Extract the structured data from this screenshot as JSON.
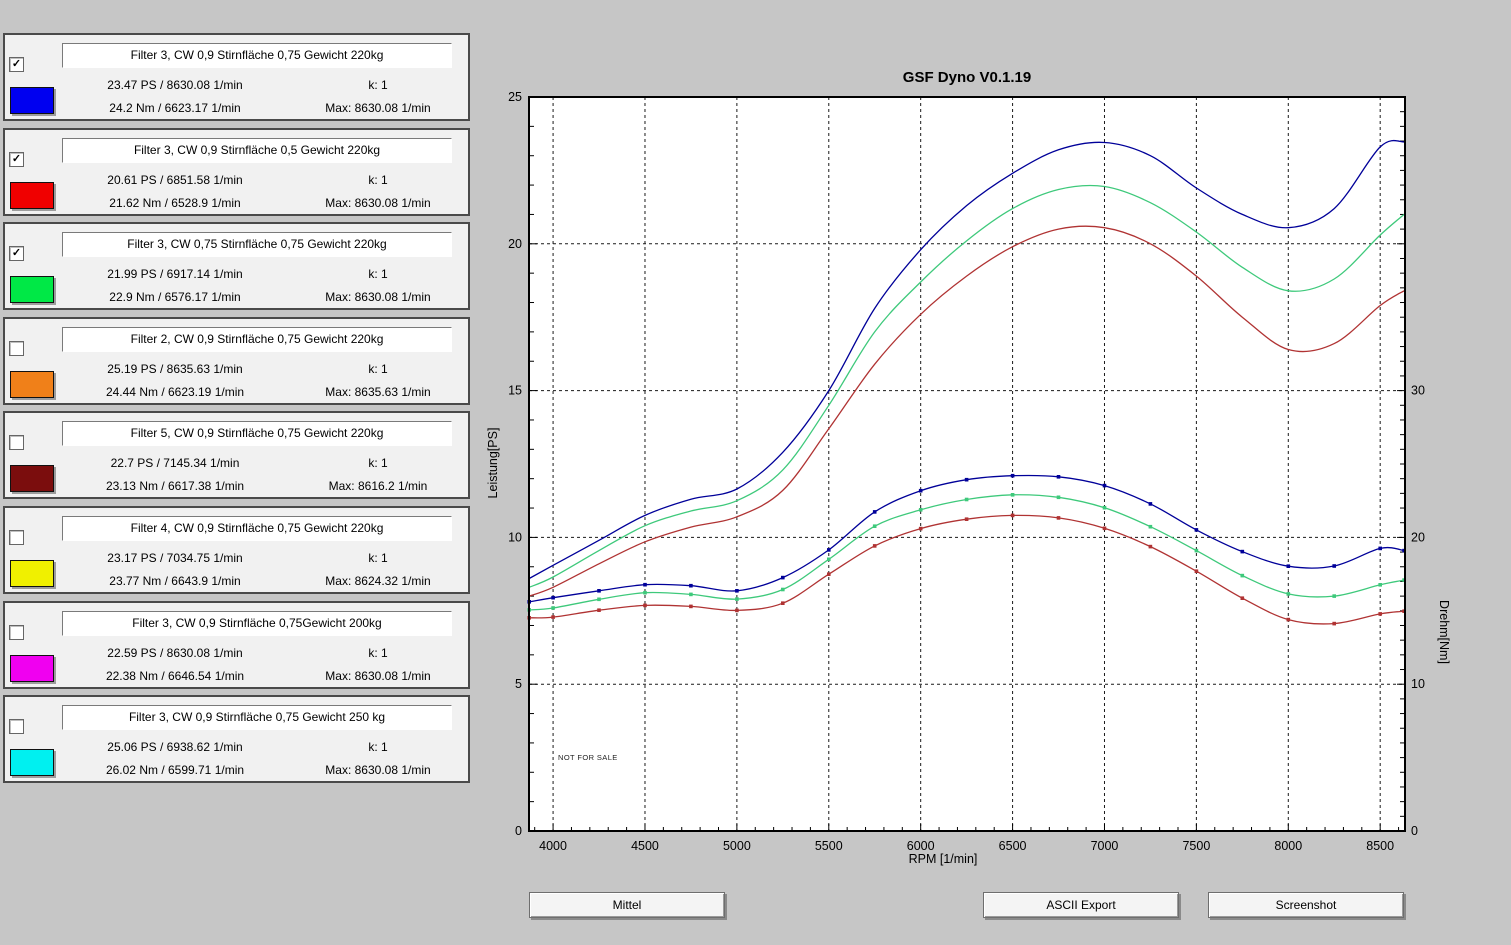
{
  "app": {
    "background": "#c6c6c6"
  },
  "legend_panels": [
    {
      "checked": true,
      "color": "#0000f0",
      "title": "Filter 3, CW 0,9 Stirnfläche 0,75 Gewicht 220kg",
      "ps": "23.47 PS / 8630.08 1/min",
      "k": "k: 1",
      "nm": "24.2 Nm / 6623.17 1/min",
      "max": "Max: 8630.08 1/min"
    },
    {
      "checked": true,
      "color": "#f00000",
      "title": "Filter 3, CW 0,9 Stirnfläche 0,5 Gewicht 220kg",
      "ps": "20.61 PS / 6851.58 1/min",
      "k": "k: 1",
      "nm": "21.62 Nm / 6528.9 1/min",
      "max": "Max: 8630.08 1/min"
    },
    {
      "checked": true,
      "color": "#00e846",
      "title": "Filter 3, CW 0,75 Stirnfläche 0,75 Gewicht 220kg",
      "ps": "21.99 PS / 6917.14 1/min",
      "k": "k: 1",
      "nm": "22.9 Nm / 6576.17 1/min",
      "max": "Max: 8630.08 1/min"
    },
    {
      "checked": false,
      "color": "#f08019",
      "title": "Filter 2, CW 0,9 Stirnfläche 0,75 Gewicht 220kg",
      "ps": "25.19 PS / 8635.63 1/min",
      "k": "k: 1",
      "nm": "24.44 Nm / 6623.19 1/min",
      "max": "Max: 8635.63 1/min"
    },
    {
      "checked": false,
      "color": "#7b0d0d",
      "title": "Filter 5, CW 0,9 Stirnfläche 0,75 Gewicht 220kg",
      "ps": "22.7 PS / 7145.34 1/min",
      "k": "k: 1",
      "nm": "23.13 Nm / 6617.38 1/min",
      "max": "Max: 8616.2 1/min"
    },
    {
      "checked": false,
      "color": "#f0f000",
      "title": "Filter 4, CW 0,9 Stirnfläche 0,75 Gewicht 220kg",
      "ps": "23.17 PS / 7034.75 1/min",
      "k": "k: 1",
      "nm": "23.77 Nm / 6643.9 1/min",
      "max": "Max: 8624.32 1/min"
    },
    {
      "checked": false,
      "color": "#f000f0",
      "title": "Filter 3, CW 0,9 Stirnfläche 0,75Gewicht 200kg",
      "ps": "22.59 PS / 8630.08 1/min",
      "k": "k: 1",
      "nm": "22.38 Nm / 6646.54 1/min",
      "max": "Max: 8630.08 1/min"
    },
    {
      "checked": false,
      "color": "#00f0f0",
      "title": "Filter 3, CW 0,9 Stirnfläche 0,75 Gewicht 250 kg",
      "ps": "25.06 PS / 6938.62 1/min",
      "k": "k: 1",
      "nm": "26.02 Nm / 6599.71 1/min",
      "max": "Max: 8630.08 1/min"
    }
  ],
  "chart": {
    "title": "GSF Dyno V0.1.19",
    "xlabel": "RPM [1/min]",
    "ylabel_left": "Leistung[PS]",
    "ylabel_right": "Drehm[Nm]",
    "watermark": "NOT FOR SALE"
  },
  "chart_data": {
    "type": "line",
    "title": "GSF Dyno V0.1.19",
    "xlabel": "RPM [1/min]",
    "ylabel_left": "Leistung[PS]",
    "ylabel_right": "Drehm[Nm]",
    "grid": "dashed",
    "x_axis": {
      "min": 3869,
      "max": 8635,
      "major_ticks": [
        4000,
        4500,
        5000,
        5500,
        6000,
        6500,
        7000,
        7500,
        8000,
        8500
      ],
      "minor_step": 100
    },
    "y_left_axis": {
      "min": 0,
      "max": 25,
      "labeled_ticks": [
        0,
        5,
        10,
        15,
        20,
        25
      ],
      "minor_step": 1,
      "gridline_values": [
        5,
        10,
        15,
        20
      ]
    },
    "y_right_axis": {
      "min": 0,
      "max": 50,
      "labeled_ticks": [
        0,
        10,
        20,
        30
      ],
      "minor_step": 1
    },
    "x": [
      3870,
      4000,
      4250,
      4500,
      4750,
      5000,
      5250,
      5500,
      5750,
      6000,
      6250,
      6500,
      6750,
      7000,
      7250,
      7500,
      7750,
      8000,
      8250,
      8500,
      8630
    ],
    "series": [
      {
        "name": "power-red",
        "unit": "PS",
        "axis": "left",
        "color": "#b03333",
        "markers": false,
        "values": [
          8.0,
          8.3,
          9.1,
          9.85,
          10.35,
          10.7,
          11.6,
          13.7,
          15.9,
          17.6,
          18.9,
          19.9,
          20.5,
          20.55,
          20.0,
          18.9,
          17.5,
          16.4,
          16.6,
          17.9,
          18.4
        ]
      },
      {
        "name": "power-green",
        "unit": "PS",
        "axis": "left",
        "color": "#3ec97b",
        "markers": false,
        "values": [
          8.3,
          8.65,
          9.55,
          10.4,
          10.9,
          11.25,
          12.3,
          14.5,
          17.0,
          18.7,
          20.1,
          21.2,
          21.85,
          21.95,
          21.4,
          20.4,
          19.2,
          18.4,
          18.8,
          20.3,
          21.0
        ]
      },
      {
        "name": "power-blue",
        "unit": "PS",
        "axis": "left",
        "color": "#000099",
        "markers": false,
        "values": [
          8.6,
          9.05,
          9.9,
          10.75,
          11.3,
          11.65,
          12.9,
          15.0,
          17.8,
          19.8,
          21.3,
          22.4,
          23.2,
          23.45,
          23.0,
          21.9,
          21.0,
          20.55,
          21.2,
          23.3,
          23.47
        ]
      },
      {
        "name": "torque-red",
        "unit": "Nm",
        "axis": "right",
        "color": "#b03333",
        "markers": true,
        "values": [
          14.52,
          14.57,
          15.04,
          15.37,
          15.3,
          15.03,
          15.52,
          17.49,
          19.42,
          20.6,
          21.24,
          21.5,
          21.33,
          20.62,
          19.37,
          17.7,
          15.86,
          14.4,
          14.13,
          14.79,
          14.97
        ]
      },
      {
        "name": "torque-green",
        "unit": "Nm",
        "axis": "right",
        "color": "#3ec97b",
        "markers": true,
        "values": [
          15.06,
          15.19,
          15.78,
          16.23,
          16.12,
          15.8,
          16.45,
          18.51,
          20.76,
          21.88,
          22.58,
          22.9,
          22.73,
          22.02,
          20.73,
          19.1,
          17.4,
          16.15,
          16.0,
          16.77,
          17.09
        ]
      },
      {
        "name": "torque-blue",
        "unit": "Nm",
        "axis": "right",
        "color": "#000099",
        "markers": true,
        "values": [
          15.61,
          15.89,
          16.36,
          16.78,
          16.71,
          16.36,
          17.26,
          19.15,
          21.74,
          23.18,
          23.93,
          24.2,
          24.13,
          23.53,
          22.28,
          20.51,
          19.03,
          18.04,
          18.05,
          19.25,
          19.1
        ]
      }
    ]
  },
  "buttons": {
    "mittel": "Mittel",
    "ascii_export": "ASCII Export",
    "screenshot": "Screenshot"
  }
}
